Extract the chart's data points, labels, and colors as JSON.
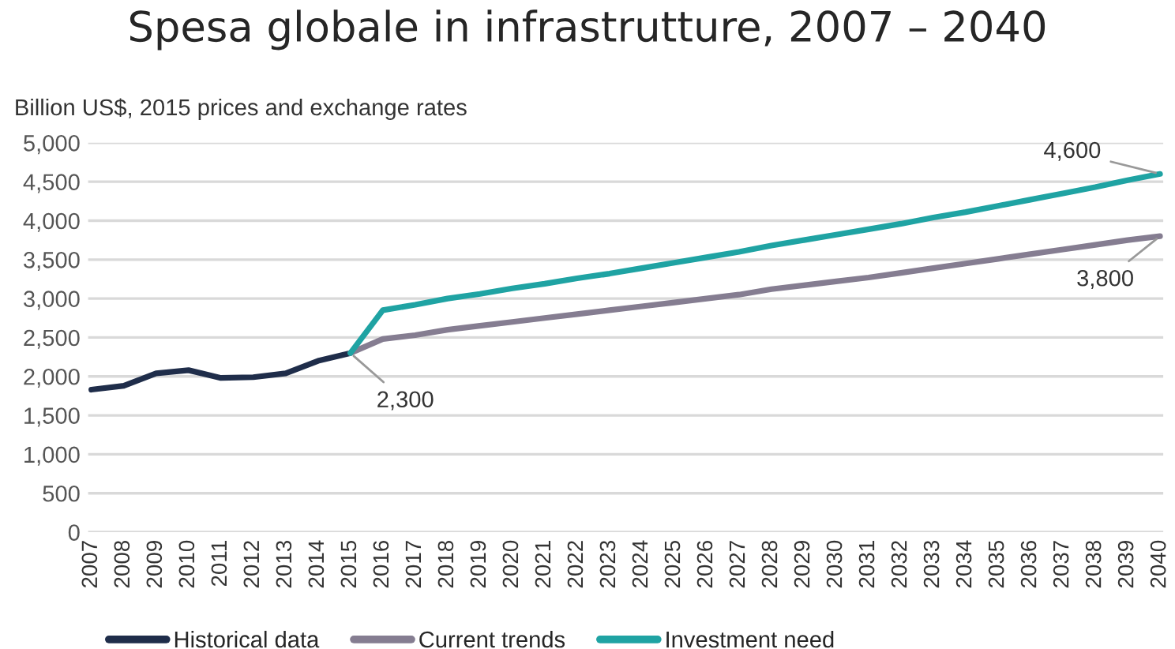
{
  "chart_data": {
    "type": "line",
    "title": "Spesa globale in infrastrutture, 2007 – 2040",
    "ylabel": "Billion US$, 2015 prices and exchange rates",
    "categories": [
      "2007",
      "2008",
      "2009",
      "2010",
      "2011",
      "2012",
      "2013",
      "2014",
      "2015",
      "2016",
      "2017",
      "2018",
      "2019",
      "2020",
      "2021",
      "2022",
      "2023",
      "2024",
      "2025",
      "2026",
      "2027",
      "2028",
      "2029",
      "2030",
      "2031",
      "2032",
      "2033",
      "2034",
      "2035",
      "2036",
      "2037",
      "2038",
      "2039",
      "2040"
    ],
    "series": [
      {
        "name": "Historical data",
        "color": "#1f2d4a",
        "values": [
          1830,
          1880,
          2040,
          2080,
          1980,
          1990,
          2040,
          2200,
          2300,
          null,
          null,
          null,
          null,
          null,
          null,
          null,
          null,
          null,
          null,
          null,
          null,
          null,
          null,
          null,
          null,
          null,
          null,
          null,
          null,
          null,
          null,
          null,
          null,
          null
        ]
      },
      {
        "name": "Current trends",
        "color": "#857d91",
        "values": [
          null,
          null,
          null,
          null,
          null,
          null,
          null,
          null,
          2300,
          2480,
          2530,
          2600,
          2650,
          2700,
          2750,
          2800,
          2850,
          2900,
          2950,
          3000,
          3050,
          3120,
          3170,
          3220,
          3270,
          3330,
          3390,
          3450,
          3510,
          3570,
          3630,
          3690,
          3750,
          3800
        ]
      },
      {
        "name": "Investment need",
        "color": "#1fa3a3",
        "values": [
          null,
          null,
          null,
          null,
          null,
          null,
          null,
          null,
          2300,
          2850,
          2920,
          3000,
          3060,
          3130,
          3190,
          3260,
          3320,
          3390,
          3460,
          3530,
          3600,
          3680,
          3750,
          3820,
          3890,
          3960,
          4040,
          4110,
          4190,
          4270,
          4350,
          4430,
          4520,
          4600
        ]
      }
    ],
    "ylim": [
      0,
      5000
    ],
    "yticks": [
      0,
      500,
      {
        "value": 1000,
        "label": "1,000"
      },
      {
        "value": 1500,
        "label": "1,500"
      },
      {
        "value": 2000,
        "label": "2,000"
      },
      {
        "value": 2500,
        "label": "2,500"
      },
      {
        "value": 3000,
        "label": "3,000"
      },
      {
        "value": 3500,
        "label": "3,500"
      },
      {
        "value": 4000,
        "label": "4,000"
      },
      {
        "value": 4500,
        "label": "4,500"
      },
      {
        "value": 5000,
        "label": "5,000"
      }
    ],
    "grid": "y",
    "legend": "bottom",
    "line_style": "solid",
    "marker": "none",
    "annotations": [
      {
        "text": "2,300",
        "x": "2015",
        "y": 2300
      },
      {
        "text": "4,600",
        "x": "2040",
        "y": 4600
      },
      {
        "text": "3,800",
        "x": "2040",
        "y": 3800
      }
    ]
  }
}
